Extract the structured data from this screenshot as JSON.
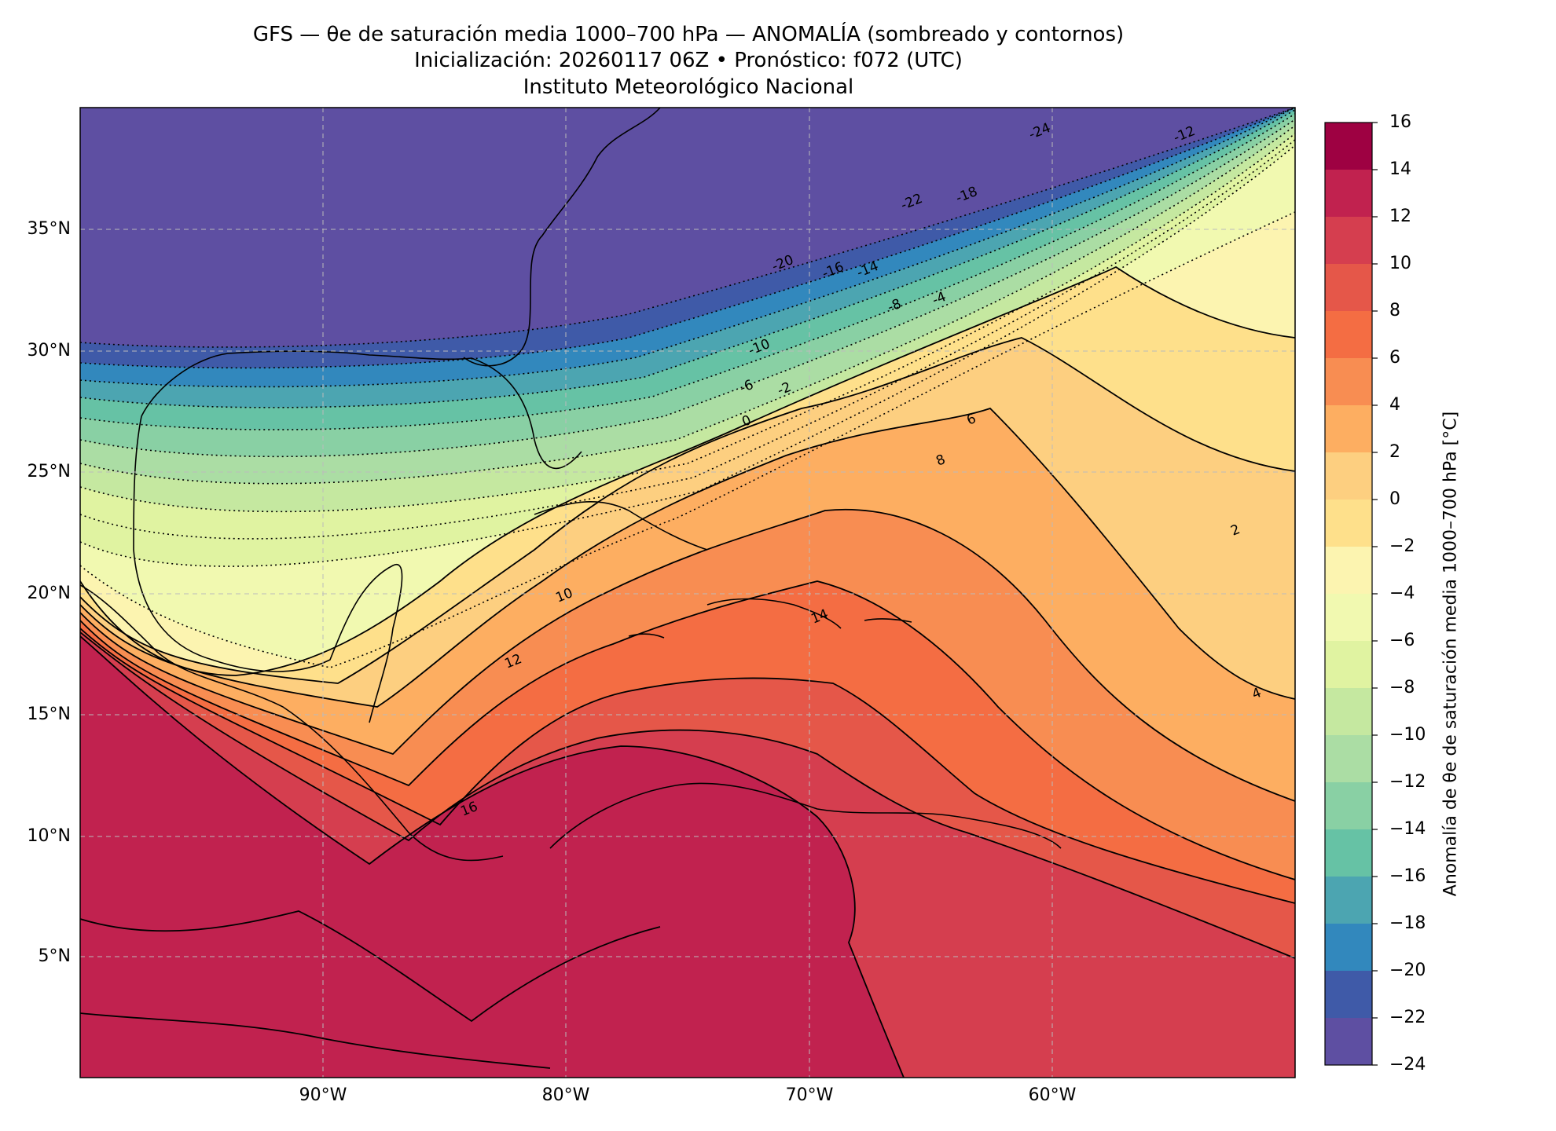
{
  "title": {
    "line1": "GFS — θe de saturación media 1000–700 hPa — ANOMALÍA (sombreado y contornos)",
    "line2": "Inicialización: 20260117 06Z   •   Pronóstico: f072 (UTC)",
    "line3": "Instituto Meteorológico Nacional"
  },
  "map": {
    "lat_labels": [
      "35°N",
      "30°N",
      "25°N",
      "20°N",
      "15°N",
      "10°N",
      "5°N"
    ],
    "lon_labels": [
      "90°W",
      "80°W",
      "70°W",
      "60°W"
    ],
    "contour_labels": [
      "-24",
      "-22",
      "-20",
      "-18",
      "-16",
      "-14",
      "-12",
      "-10",
      "-8",
      "-6",
      "-4",
      "-2",
      "0",
      "2",
      "4",
      "6",
      "8",
      "10",
      "12",
      "14",
      "16"
    ],
    "colors": {
      "lt_m24": "#5e4fa2",
      "m24_m22": "#3f5aa8",
      "m22_m20": "#3288bd",
      "m20_m18": "#4ca5b1",
      "m18_m16": "#66c2a5",
      "m16_m14": "#89d0a4",
      "m14_m12": "#abdda4",
      "m12_m10": "#c5e8a0",
      "m10_m8": "#e0f3a1",
      "m8_m4": "#f1f9b0",
      "m4_m2": "#fcf4b0",
      "m2_0": "#fee08b",
      "0_2": "#fdcf80",
      "2_4": "#fdae61",
      "4_6": "#f88d52",
      "6_8": "#f46d43",
      "8_10": "#e55749",
      "10_12": "#d53e4f",
      "12_14": "#c1224f",
      "gt_14": "#9e0142"
    }
  },
  "colorbar": {
    "label": "Anomalía de θe de saturación media 1000–700 hPa [°C]",
    "ticks": [
      "16",
      "14",
      "12",
      "10",
      "8",
      "6",
      "4",
      "2",
      "0",
      "−2",
      "−4",
      "−6",
      "−8",
      "−10",
      "−12",
      "−14",
      "−16",
      "−18",
      "−20",
      "−22",
      "−24"
    ],
    "colors": [
      "#9e0142",
      "#c1224f",
      "#d53e4f",
      "#e55749",
      "#f46d43",
      "#f88d52",
      "#fdae61",
      "#fdcf80",
      "#fee08b",
      "#fcf4b0",
      "#f1f9b0",
      "#e0f3a1",
      "#c5e8a0",
      "#abdda4",
      "#89d0a4",
      "#66c2a5",
      "#4ca5b1",
      "#3288bd",
      "#3f5aa8",
      "#5e4fa2"
    ]
  }
}
